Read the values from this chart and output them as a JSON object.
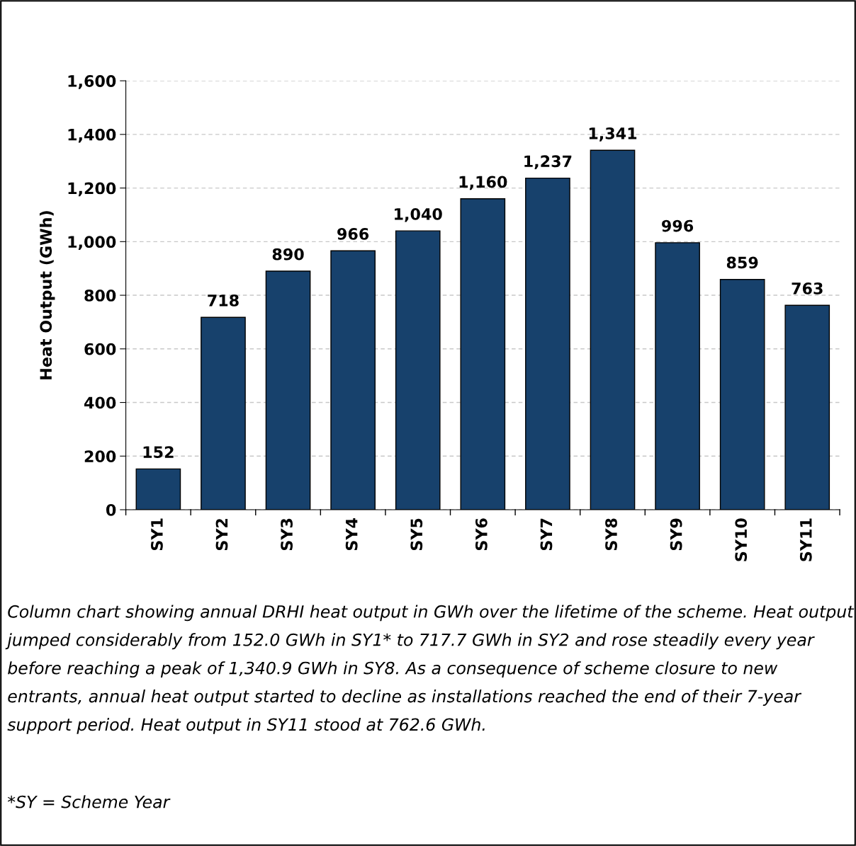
{
  "chart_data": {
    "type": "bar",
    "ylabel": "Heat Output (GWh)",
    "categories": [
      "SY1",
      "SY2",
      "SY3",
      "SY4",
      "SY5",
      "SY6",
      "SY7",
      "SY8",
      "SY9",
      "SY10",
      "SY11"
    ],
    "values": [
      152.0,
      717.7,
      890,
      966,
      1040,
      1160,
      1237,
      1340.9,
      996,
      859,
      762.6
    ],
    "value_labels": [
      "152",
      "718",
      "890",
      "966",
      "1,040",
      "1,160",
      "1,237",
      "1,341",
      "996",
      "859",
      "763"
    ],
    "color": "#17416c",
    "ylim": [
      0,
      1600
    ],
    "yticks": [
      {
        "value": 0,
        "label": "0"
      },
      {
        "value": 200,
        "label": "200"
      },
      {
        "value": 400,
        "label": "400"
      },
      {
        "value": 600,
        "label": "600"
      },
      {
        "value": 800,
        "label": "800"
      },
      {
        "value": 1000,
        "label": "1,000"
      },
      {
        "value": 1200,
        "label": "1,200"
      },
      {
        "value": 1400,
        "label": "1,400"
      },
      {
        "value": 1600,
        "label": "1,600"
      }
    ],
    "grid": "y",
    "annotations": [
      "Column chart showing annual DRHI heat output in GWh over the lifetime of the scheme. Heat output jumped considerably from 152.0 GWh in SY1* to 717.7 GWh in SY2 and rose steadily every year before reaching a peak of 1,340.9 GWh in SY8. As a consequence of scheme closure to new entrants, annual heat output started to decline as installations reached the end of their 7-year support period. Heat output in SY11 stood at 762.6 GWh.",
      "*SY = Scheme Year"
    ]
  }
}
